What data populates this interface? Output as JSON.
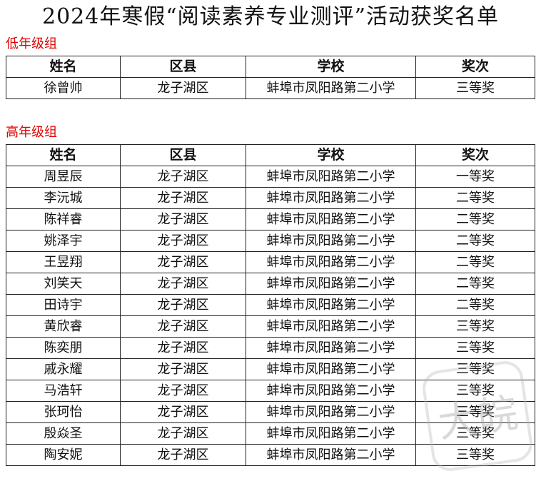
{
  "title": "2024年寒假“阅读素养专业测评”活动获奖名单",
  "headers": [
    "姓名",
    "区县",
    "学校",
    "奖次"
  ],
  "low_group": {
    "label": "低年级组",
    "rows": [
      [
        "徐曾帅",
        "龙子湖区",
        "蚌埠市凤阳路第二小学",
        "三等奖"
      ]
    ]
  },
  "high_group": {
    "label": "高年级组",
    "rows": [
      [
        "周昱辰",
        "龙子湖区",
        "蚌埠市凤阳路第二小学",
        "一等奖"
      ],
      [
        "李沅城",
        "龙子湖区",
        "蚌埠市凤阳路第二小学",
        "二等奖"
      ],
      [
        "陈祥睿",
        "龙子湖区",
        "蚌埠市凤阳路第二小学",
        "二等奖"
      ],
      [
        "姚泽宇",
        "龙子湖区",
        "蚌埠市凤阳路第二小学",
        "二等奖"
      ],
      [
        "王昱翔",
        "龙子湖区",
        "蚌埠市凤阳路第二小学",
        "二等奖"
      ],
      [
        "刘笑天",
        "龙子湖区",
        "蚌埠市凤阳路第二小学",
        "二等奖"
      ],
      [
        "田诗宇",
        "龙子湖区",
        "蚌埠市凤阳路第二小学",
        "二等奖"
      ],
      [
        "黄欣睿",
        "龙子湖区",
        "蚌埠市凤阳路第二小学",
        "三等奖"
      ],
      [
        "陈奕朋",
        "龙子湖区",
        "蚌埠市凤阳路第二小学",
        "三等奖"
      ],
      [
        "戚永耀",
        "龙子湖区",
        "蚌埠市凤阳路第二小学",
        "三等奖"
      ],
      [
        "马浩轩",
        "龙子湖区",
        "蚌埠市凤阳路第二小学",
        "三等奖"
      ],
      [
        "张珂怡",
        "龙子湖区",
        "蚌埠市凤阳路第二小学",
        "三等奖"
      ],
      [
        "殷焱圣",
        "龙子湖区",
        "蚌埠市凤阳路第二小学",
        "三等奖"
      ],
      [
        "陶安妮",
        "龙子湖区",
        "蚌埠市凤阳路第二小学",
        "三等奖"
      ]
    ]
  },
  "watermark": {
    "text": "大皖"
  }
}
